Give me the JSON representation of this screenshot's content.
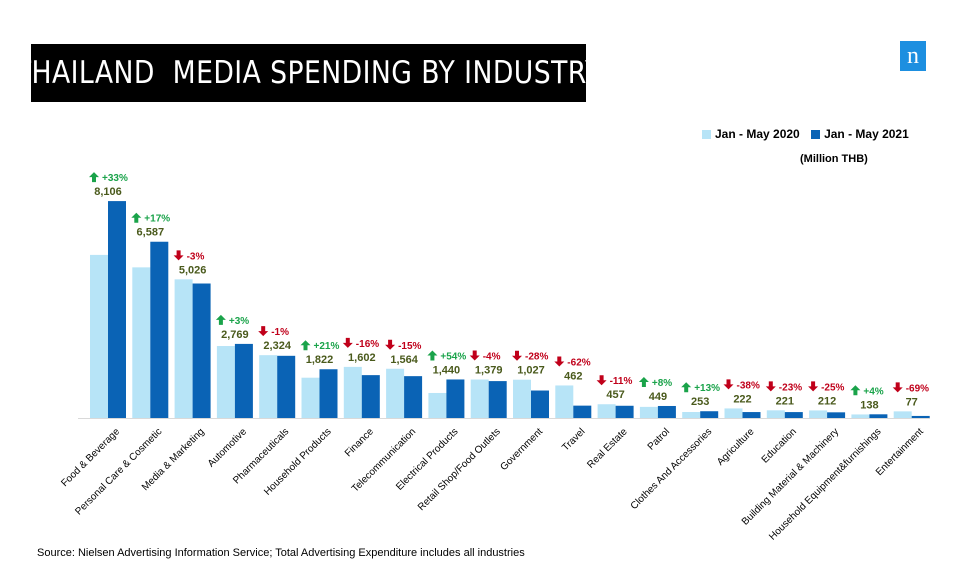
{
  "header": {
    "title": "THAILAND  MEDIA SPENDING BY INDUSTRY",
    "logo_letter": "n",
    "logo_color": "#1d8fe0"
  },
  "legend": {
    "items": [
      {
        "label": "Jan - May 2020",
        "color": "#b7e4f7"
      },
      {
        "label": "Jan - May 2021",
        "color": "#0a63b5"
      }
    ]
  },
  "units_note": "(Million THB)",
  "footer": {
    "source": "Source: Nielsen Advertising Information Service; Total Advertising Expenditure includes all industries"
  },
  "chart_data": {
    "type": "bar",
    "title": "THAILAND  MEDIA SPENDING BY INDUSTRY",
    "ylabel": "",
    "xlabel": "",
    "ylim": [
      0,
      8400
    ],
    "grid": false,
    "legend_position": "top-right",
    "categories": [
      "Food & Beverage",
      "Personal Care & Cosmetic",
      "Media & Marketing",
      "Automotive",
      "Pharmaceuticals",
      "Household Products",
      "Finance",
      "Telecommunication",
      "Electrical Products",
      "Retail Shop/Food Outlets",
      "Government",
      "Travel",
      "Real Estate",
      "Patrol",
      "Clothes And Accessories",
      "Agriculture",
      "Education",
      "Building Material & Machinery",
      "Household Equipment&furnishings",
      "Entertainment"
    ],
    "series": [
      {
        "name": "Jan - May 2020",
        "color": "#b7e4f7",
        "values": [
          6095,
          5630,
          5182,
          2690,
          2348,
          1506,
          1910,
          1840,
          935,
          1438,
          1431,
          1216,
          514,
          416,
          224,
          358,
          287,
          283,
          133,
          248
        ]
      },
      {
        "name": "Jan - May 2021",
        "color": "#0a63b5",
        "values": [
          8106,
          6587,
          5026,
          2769,
          2324,
          1822,
          1602,
          1564,
          1440,
          1379,
          1027,
          462,
          457,
          449,
          253,
          222,
          221,
          212,
          138,
          77
        ]
      }
    ],
    "value_labels": [
      "8,106",
      "6,587",
      "5,026",
      "2,769",
      "2,324",
      "1,822",
      "1,602",
      "1,564",
      "1,440",
      "1,379",
      "1,027",
      "462",
      "457",
      "449",
      "253",
      "222",
      "221",
      "212",
      "138",
      "77"
    ],
    "changes": [
      "+33%",
      "+17%",
      "-3%",
      "+3%",
      "-1%",
      "+21%",
      "-16%",
      "-15%",
      "+54%",
      "-4%",
      "-28%",
      "-62%",
      "-11%",
      "+8%",
      "+13%",
      "-38%",
      "-23%",
      "-25%",
      "+4%",
      "-69%"
    ],
    "change_colors": {
      "up": "#1aa34a",
      "down": "#c0001a"
    },
    "value_label_color": "#4a5a1c"
  }
}
